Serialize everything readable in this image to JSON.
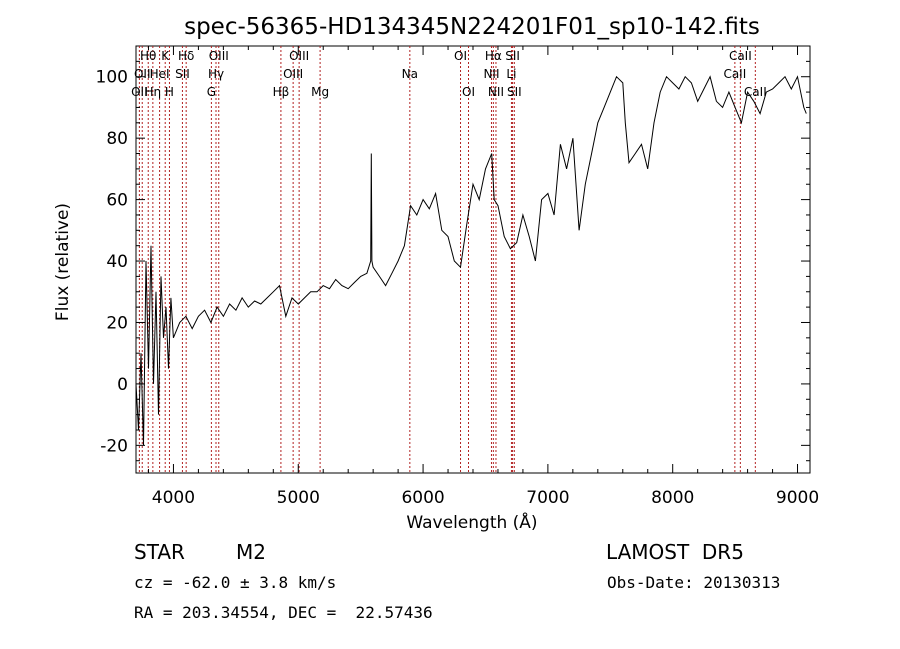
{
  "chart_data": {
    "type": "line",
    "title": "spec-56365-HD134345N224201F01_sp10-142.fits",
    "xlabel": "Wavelength (Å)",
    "ylabel": "Flux (relative)",
    "xlim": [
      3700,
      9100
    ],
    "ylim": [
      -29,
      110
    ],
    "x_ticks": [
      4000,
      5000,
      6000,
      7000,
      8000,
      9000
    ],
    "y_ticks": [
      -20,
      0,
      20,
      40,
      60,
      80,
      100
    ],
    "grid": false,
    "line_color": "#000000",
    "marker_color": "#b22222",
    "series": [
      {
        "x": [
          3700,
          3720,
          3740,
          3760,
          3780,
          3800,
          3820,
          3840,
          3860,
          3880,
          3900,
          3920,
          3940,
          3960,
          3980,
          4000,
          4050,
          4100,
          4150,
          4200,
          4250,
          4300,
          4350,
          4400,
          4450,
          4500,
          4550,
          4600,
          4650,
          4700,
          4750,
          4800,
          4850,
          4900,
          4950,
          5000,
          5050,
          5100,
          5150,
          5200,
          5250,
          5300,
          5350,
          5400,
          5450,
          5500,
          5550,
          5580,
          5585,
          5590,
          5600,
          5650,
          5700,
          5750,
          5800,
          5850,
          5900,
          5950,
          6000,
          6050,
          6100,
          6150,
          6200,
          6250,
          6300,
          6350,
          6400,
          6450,
          6500,
          6550,
          6570,
          6600,
          6650,
          6700,
          6750,
          6800,
          6850,
          6900,
          6950,
          7000,
          7050,
          7100,
          7150,
          7200,
          7250,
          7300,
          7350,
          7400,
          7450,
          7500,
          7550,
          7600,
          7620,
          7650,
          7700,
          7750,
          7800,
          7850,
          7900,
          7950,
          8000,
          8050,
          8100,
          8150,
          8200,
          8250,
          8300,
          8350,
          8400,
          8450,
          8500,
          8550,
          8600,
          8650,
          8700,
          8750,
          8800,
          8850,
          8900,
          8950,
          9000,
          9050,
          9070
        ],
        "y": [
          0,
          -15,
          10,
          -20,
          40,
          5,
          45,
          0,
          30,
          -10,
          35,
          15,
          25,
          5,
          28,
          15,
          20,
          22,
          18,
          22,
          24,
          20,
          25,
          22,
          26,
          24,
          28,
          25,
          27,
          26,
          28,
          30,
          32,
          22,
          28,
          26,
          28,
          30,
          30,
          32,
          31,
          34,
          32,
          31,
          33,
          35,
          36,
          40,
          75,
          40,
          38,
          35,
          32,
          36,
          40,
          45,
          58,
          55,
          60,
          57,
          62,
          50,
          48,
          40,
          38,
          52,
          65,
          60,
          70,
          75,
          60,
          58,
          48,
          44,
          46,
          55,
          48,
          40,
          60,
          62,
          55,
          78,
          70,
          80,
          50,
          65,
          75,
          85,
          90,
          95,
          100,
          98,
          85,
          72,
          75,
          78,
          70,
          85,
          95,
          100,
          98,
          96,
          100,
          98,
          92,
          96,
          100,
          92,
          90,
          95,
          90,
          85,
          95,
          92,
          88,
          95,
          96,
          98,
          100,
          96,
          100,
          90,
          88
        ]
      }
    ],
    "line_markers": [
      {
        "wavelength": 3727,
        "label": "OII",
        "row": 2
      },
      {
        "wavelength": 3750,
        "label": "OII",
        "row": 1
      },
      {
        "wavelength": 3798,
        "label": "Hθ",
        "row": 0
      },
      {
        "wavelength": 3835,
        "label": "Hη",
        "row": 2
      },
      {
        "wavelength": 3889,
        "label": "HeI",
        "row": 1
      },
      {
        "wavelength": 3934,
        "label": "K",
        "row": 0
      },
      {
        "wavelength": 3968,
        "label": "H",
        "row": 2
      },
      {
        "wavelength": 4072,
        "label": "SII",
        "row": 1
      },
      {
        "wavelength": 4102,
        "label": "Hδ",
        "row": 0
      },
      {
        "wavelength": 4304,
        "label": "G",
        "row": 2
      },
      {
        "wavelength": 4341,
        "label": "Hγ",
        "row": 1
      },
      {
        "wavelength": 4363,
        "label": "OIII",
        "row": 0
      },
      {
        "wavelength": 4861,
        "label": "Hβ",
        "row": 2
      },
      {
        "wavelength": 4959,
        "label": "OIII",
        "row": 1
      },
      {
        "wavelength": 5007,
        "label": "OIII",
        "row": 0
      },
      {
        "wavelength": 5175,
        "label": "Mg",
        "row": 2
      },
      {
        "wavelength": 5894,
        "label": "Na",
        "row": 1
      },
      {
        "wavelength": 6300,
        "label": "OI",
        "row": 0
      },
      {
        "wavelength": 6364,
        "label": "OI",
        "row": 2
      },
      {
        "wavelength": 6548,
        "label": "NII",
        "row": 1
      },
      {
        "wavelength": 6563,
        "label": "Hα",
        "row": 0
      },
      {
        "wavelength": 6584,
        "label": "NII",
        "row": 2
      },
      {
        "wavelength": 6708,
        "label": "Li",
        "row": 1
      },
      {
        "wavelength": 6717,
        "label": "SII",
        "row": 0
      },
      {
        "wavelength": 6731,
        "label": "SII",
        "row": 2
      },
      {
        "wavelength": 8498,
        "label": "CaII",
        "row": 1
      },
      {
        "wavelength": 8542,
        "label": "CaII",
        "row": 0
      },
      {
        "wavelength": 8662,
        "label": "CaII",
        "row": 2
      }
    ]
  },
  "info": {
    "object_class": "STAR",
    "subclass": "M2",
    "survey": "LAMOST  DR5",
    "redshift": "cz = -62.0 ± 3.8 km/s",
    "obs_date": "Obs-Date: 20130313",
    "coordinates": "RA = 203.34554, DEC =  22.57436"
  }
}
